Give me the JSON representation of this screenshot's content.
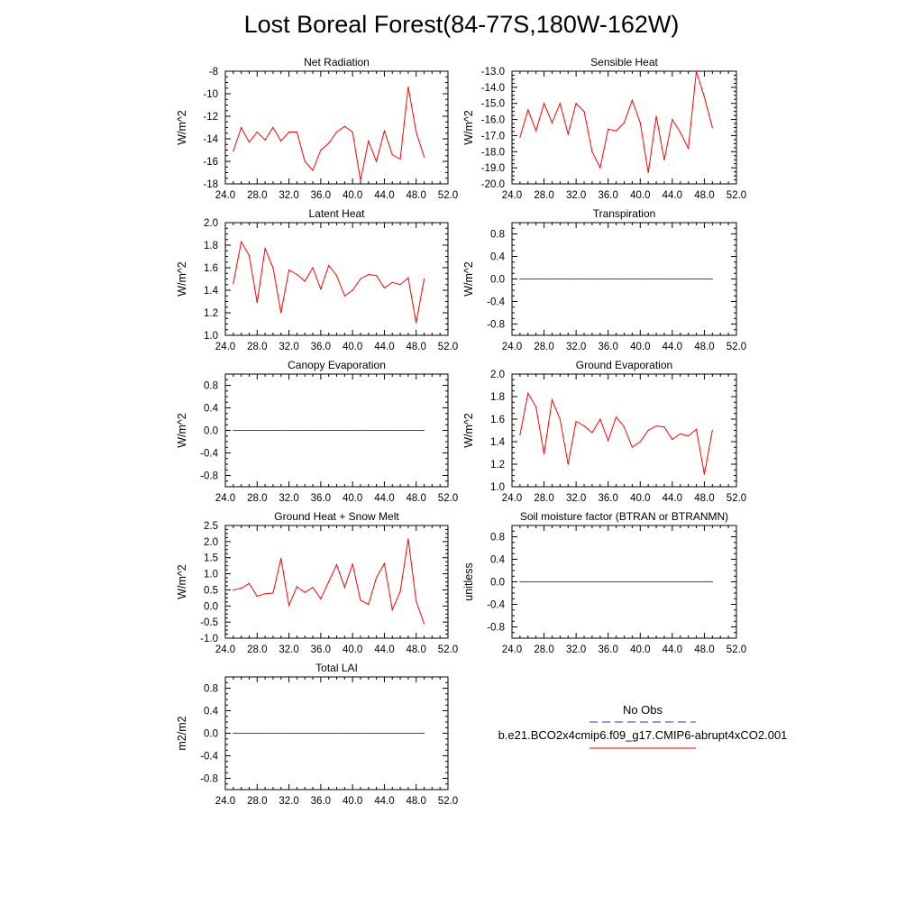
{
  "title": "Lost Boreal Forest(84-77S,180W-162W)",
  "colors": {
    "model": "#ff0000",
    "obs": "#3333aa",
    "axis": "#000000"
  },
  "legend": {
    "obs_label": "No Obs",
    "model_label": "b.e21.BCO2x4cmip6.f09_g17.CMIP6-abrupt4xCO2.001"
  },
  "chart_data": [
    {
      "type": "line",
      "title": "Net Radiation",
      "ylabel": "W/m^2",
      "xlim": [
        24,
        52
      ],
      "ylim": [
        -18,
        -8
      ],
      "xticks": [
        "24.0",
        "28.0",
        "32.0",
        "36.0",
        "40.0",
        "44.0",
        "48.0",
        "52.0"
      ],
      "yticks": [
        "-18",
        "-16",
        "-14",
        "-12",
        "-10",
        "-8"
      ],
      "series": [
        {
          "name": "b.e21.BCO2x4cmip6.f09_g17.CMIP6-abrupt4xCO2.001",
          "x": [
            25,
            26,
            27,
            28,
            29,
            30,
            31,
            32,
            33,
            34,
            35,
            36,
            37,
            38,
            39,
            40,
            41,
            42,
            43,
            44,
            45,
            46,
            47,
            48,
            49
          ],
          "values": [
            -15.1,
            -13.0,
            -14.3,
            -13.4,
            -14.1,
            -13.0,
            -14.2,
            -13.4,
            -13.4,
            -16.0,
            -16.8,
            -15.0,
            -14.4,
            -13.4,
            -12.9,
            -13.4,
            -17.7,
            -14.2,
            -16.0,
            -13.3,
            -15.4,
            -15.8,
            -9.4,
            -13.4,
            -15.6
          ]
        }
      ]
    },
    {
      "type": "line",
      "title": "Sensible Heat",
      "ylabel": "W/m^2",
      "xlim": [
        24,
        52
      ],
      "ylim": [
        -20,
        -13
      ],
      "xticks": [
        "24.0",
        "28.0",
        "32.0",
        "36.0",
        "40.0",
        "44.0",
        "48.0",
        "52.0"
      ],
      "yticks": [
        "-20.0",
        "-19.0",
        "-18.0",
        "-17.0",
        "-16.0",
        "-15.0",
        "-14.0",
        "-13.0"
      ],
      "series": [
        {
          "name": "b.e21.BCO2x4cmip6.f09_g17.CMIP6-abrupt4xCO2.001",
          "x": [
            25,
            26,
            27,
            28,
            29,
            30,
            31,
            32,
            33,
            34,
            35,
            36,
            37,
            38,
            39,
            40,
            41,
            42,
            43,
            44,
            45,
            46,
            47,
            48,
            49
          ],
          "values": [
            -17.1,
            -15.4,
            -16.7,
            -15.0,
            -16.2,
            -15.0,
            -16.9,
            -15.0,
            -15.5,
            -18.0,
            -19.0,
            -16.6,
            -16.7,
            -16.2,
            -14.8,
            -16.2,
            -19.3,
            -15.8,
            -18.5,
            -16.0,
            -16.8,
            -17.8,
            -13.0,
            -14.6,
            -16.5
          ]
        }
      ]
    },
    {
      "type": "line",
      "title": "Latent Heat",
      "ylabel": "W/m^2",
      "xlim": [
        24,
        52
      ],
      "ylim": [
        1.0,
        2.0
      ],
      "xticks": [
        "24.0",
        "28.0",
        "32.0",
        "36.0",
        "40.0",
        "44.0",
        "48.0",
        "52.0"
      ],
      "yticks": [
        "1.0",
        "1.2",
        "1.4",
        "1.6",
        "1.8",
        "2.0"
      ],
      "series": [
        {
          "name": "b.e21.BCO2x4cmip6.f09_g17.CMIP6-abrupt4xCO2.001",
          "x": [
            25,
            26,
            27,
            28,
            29,
            30,
            31,
            32,
            33,
            34,
            35,
            36,
            37,
            38,
            39,
            40,
            41,
            42,
            43,
            44,
            45,
            46,
            47,
            48,
            49
          ],
          "values": [
            1.46,
            1.83,
            1.71,
            1.29,
            1.77,
            1.6,
            1.2,
            1.58,
            1.54,
            1.48,
            1.6,
            1.41,
            1.62,
            1.53,
            1.35,
            1.4,
            1.5,
            1.54,
            1.53,
            1.42,
            1.47,
            1.45,
            1.51,
            1.11,
            1.5
          ]
        }
      ]
    },
    {
      "type": "line",
      "title": "Transpiration",
      "ylabel": "W/m^2",
      "xlim": [
        24,
        52
      ],
      "ylim": [
        -1.0,
        1.0
      ],
      "xticks": [
        "24.0",
        "28.0",
        "32.0",
        "36.0",
        "40.0",
        "44.0",
        "48.0",
        "52.0"
      ],
      "yticks": [
        "-0.8",
        "-0.4",
        "0.0",
        "0.4",
        "0.8"
      ],
      "series": [
        {
          "name": "b.e21.BCO2x4cmip6.f09_g17.CMIP6-abrupt4xCO2.001",
          "x": [
            25,
            26,
            27,
            28,
            29,
            30,
            31,
            32,
            33,
            34,
            35,
            36,
            37,
            38,
            39,
            40,
            41,
            42,
            43,
            44,
            45,
            46,
            47,
            48,
            49
          ],
          "values": [
            0,
            0,
            0,
            0,
            0,
            0,
            0,
            0,
            0,
            0,
            0,
            0,
            0,
            0,
            0,
            0,
            0,
            0,
            0,
            0,
            0,
            0,
            0,
            0,
            0
          ]
        }
      ]
    },
    {
      "type": "line",
      "title": "Canopy Evaporation",
      "ylabel": "W/m^2",
      "xlim": [
        24,
        52
      ],
      "ylim": [
        -1.0,
        1.0
      ],
      "xticks": [
        "24.0",
        "28.0",
        "32.0",
        "36.0",
        "40.0",
        "44.0",
        "48.0",
        "52.0"
      ],
      "yticks": [
        "-0.8",
        "-0.4",
        "0.0",
        "0.4",
        "0.8"
      ],
      "series": [
        {
          "name": "b.e21.BCO2x4cmip6.f09_g17.CMIP6-abrupt4xCO2.001",
          "x": [
            25,
            26,
            27,
            28,
            29,
            30,
            31,
            32,
            33,
            34,
            35,
            36,
            37,
            38,
            39,
            40,
            41,
            42,
            43,
            44,
            45,
            46,
            47,
            48,
            49
          ],
          "values": [
            0,
            0,
            0,
            0,
            0,
            0,
            0,
            0,
            0,
            0,
            0,
            0,
            0,
            0,
            0,
            0,
            0,
            0,
            0,
            0,
            0,
            0,
            0,
            0,
            0
          ]
        }
      ]
    },
    {
      "type": "line",
      "title": "Ground Evaporation",
      "ylabel": "W/m^2",
      "xlim": [
        24,
        52
      ],
      "ylim": [
        1.0,
        2.0
      ],
      "xticks": [
        "24.0",
        "28.0",
        "32.0",
        "36.0",
        "40.0",
        "44.0",
        "48.0",
        "52.0"
      ],
      "yticks": [
        "1.0",
        "1.2",
        "1.4",
        "1.6",
        "1.8",
        "2.0"
      ],
      "series": [
        {
          "name": "b.e21.BCO2x4cmip6.f09_g17.CMIP6-abrupt4xCO2.001",
          "x": [
            25,
            26,
            27,
            28,
            29,
            30,
            31,
            32,
            33,
            34,
            35,
            36,
            37,
            38,
            39,
            40,
            41,
            42,
            43,
            44,
            45,
            46,
            47,
            48,
            49
          ],
          "values": [
            1.46,
            1.83,
            1.71,
            1.29,
            1.77,
            1.6,
            1.2,
            1.58,
            1.54,
            1.48,
            1.6,
            1.41,
            1.62,
            1.53,
            1.35,
            1.4,
            1.5,
            1.54,
            1.53,
            1.42,
            1.47,
            1.45,
            1.51,
            1.11,
            1.5
          ]
        }
      ]
    },
    {
      "type": "line",
      "title": "Ground Heat + Snow Melt",
      "ylabel": "W/m^2",
      "xlim": [
        24,
        52
      ],
      "ylim": [
        -1.0,
        2.5
      ],
      "xticks": [
        "24.0",
        "28.0",
        "32.0",
        "36.0",
        "40.0",
        "44.0",
        "48.0",
        "52.0"
      ],
      "yticks": [
        "-1.0",
        "-0.5",
        "0.0",
        "0.5",
        "1.0",
        "1.5",
        "2.0",
        "2.5"
      ],
      "series": [
        {
          "name": "b.e21.BCO2x4cmip6.f09_g17.CMIP6-abrupt4xCO2.001",
          "x": [
            25,
            26,
            27,
            28,
            29,
            30,
            31,
            32,
            33,
            34,
            35,
            36,
            37,
            38,
            39,
            40,
            41,
            42,
            43,
            44,
            45,
            46,
            47,
            48,
            49
          ],
          "values": [
            0.5,
            0.55,
            0.7,
            0.3,
            0.38,
            0.4,
            1.48,
            0.02,
            0.6,
            0.42,
            0.58,
            0.22,
            0.75,
            1.28,
            0.58,
            1.3,
            0.18,
            0.05,
            0.88,
            1.32,
            -0.12,
            0.45,
            2.08,
            0.15,
            -0.55
          ]
        }
      ]
    },
    {
      "type": "line",
      "title": "Soil moisture factor (BTRAN or BTRANMN)",
      "ylabel": "unitless",
      "xlim": [
        24,
        52
      ],
      "ylim": [
        -1.0,
        1.0
      ],
      "xticks": [
        "24.0",
        "28.0",
        "32.0",
        "36.0",
        "40.0",
        "44.0",
        "48.0",
        "52.0"
      ],
      "yticks": [
        "-0.8",
        "-0.4",
        "0.0",
        "0.4",
        "0.8"
      ],
      "series": [
        {
          "name": "b.e21.BCO2x4cmip6.f09_g17.CMIP6-abrupt4xCO2.001",
          "x": [
            25,
            26,
            27,
            28,
            29,
            30,
            31,
            32,
            33,
            34,
            35,
            36,
            37,
            38,
            39,
            40,
            41,
            42,
            43,
            44,
            45,
            46,
            47,
            48,
            49
          ],
          "values": [
            0,
            0,
            0,
            0,
            0,
            0,
            0,
            0,
            0,
            0,
            0,
            0,
            0,
            0,
            0,
            0,
            0,
            0,
            0,
            0,
            0,
            0,
            0,
            0,
            0
          ]
        }
      ]
    },
    {
      "type": "line",
      "title": "Total LAI",
      "ylabel": "m2/m2",
      "xlim": [
        24,
        52
      ],
      "ylim": [
        -1.0,
        1.0
      ],
      "xticks": [
        "24.0",
        "28.0",
        "32.0",
        "36.0",
        "40.0",
        "44.0",
        "48.0",
        "52.0"
      ],
      "yticks": [
        "-0.8",
        "-0.4",
        "0.0",
        "0.4",
        "0.8"
      ],
      "series": [
        {
          "name": "b.e21.BCO2x4cmip6.f09_g17.CMIP6-abrupt4xCO2.001",
          "x": [
            25,
            26,
            27,
            28,
            29,
            30,
            31,
            32,
            33,
            34,
            35,
            36,
            37,
            38,
            39,
            40,
            41,
            42,
            43,
            44,
            45,
            46,
            47,
            48,
            49
          ],
          "values": [
            0,
            0,
            0,
            0,
            0,
            0,
            0,
            0,
            0,
            0,
            0,
            0,
            0,
            0,
            0,
            0,
            0,
            0,
            0,
            0,
            0,
            0,
            0,
            0,
            0
          ]
        }
      ]
    }
  ]
}
